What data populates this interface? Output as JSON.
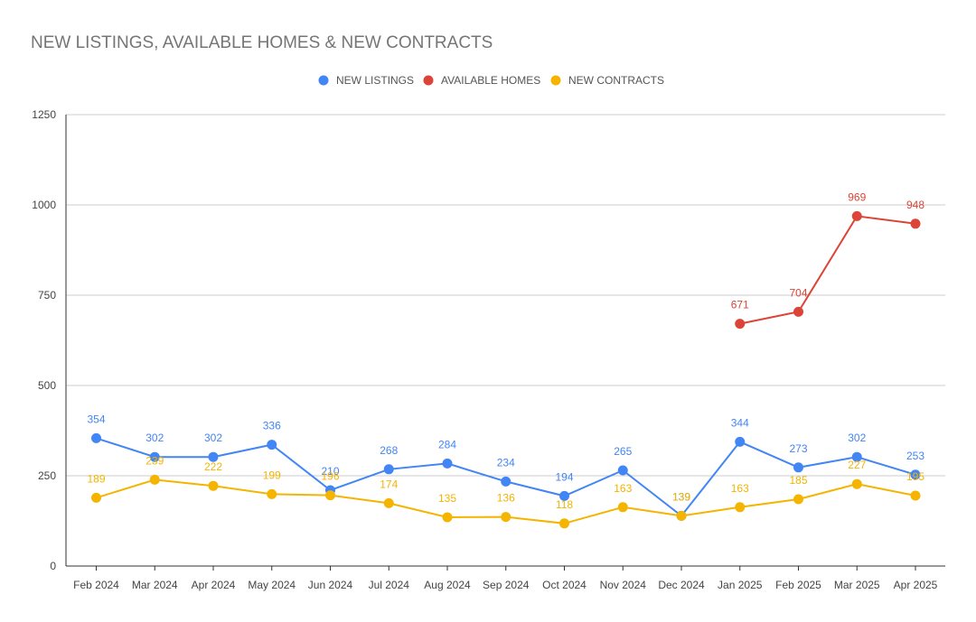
{
  "chart_data": {
    "type": "line",
    "title": "NEW LISTINGS, AVAILABLE HOMES & NEW CONTRACTS",
    "xlabel": "",
    "ylabel": "",
    "categories": [
      "Feb 2024",
      "Mar 2024",
      "Apr 2024",
      "May 2024",
      "Jun 2024",
      "Jul 2024",
      "Aug 2024",
      "Sep 2024",
      "Oct 2024",
      "Nov 2024",
      "Dec 2024",
      "Jan 2025",
      "Feb 2025",
      "Mar 2025",
      "Apr 2025"
    ],
    "ylim": [
      0,
      1250
    ],
    "yticks": [
      0,
      250,
      500,
      750,
      1000,
      1250
    ],
    "grid": true,
    "legend_position": "top",
    "series": [
      {
        "name": "NEW LISTINGS",
        "color": "#4285f4",
        "values": [
          354,
          302,
          302,
          336,
          210,
          268,
          284,
          234,
          194,
          265,
          139,
          344,
          273,
          302,
          253
        ]
      },
      {
        "name": "AVAILABLE HOMES",
        "color": "#db4437",
        "values": [
          null,
          null,
          null,
          null,
          null,
          null,
          null,
          null,
          null,
          null,
          null,
          671,
          704,
          969,
          948
        ]
      },
      {
        "name": "NEW CONTRACTS",
        "color": "#f4b400",
        "values": [
          189,
          239,
          222,
          199,
          196,
          174,
          135,
          136,
          118,
          163,
          139,
          163,
          185,
          227,
          195
        ]
      }
    ]
  }
}
